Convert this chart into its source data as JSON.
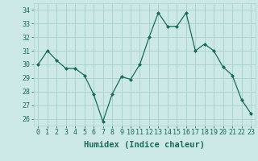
{
  "x": [
    0,
    1,
    2,
    3,
    4,
    5,
    6,
    7,
    8,
    9,
    10,
    11,
    12,
    13,
    14,
    15,
    16,
    17,
    18,
    19,
    20,
    21,
    22,
    23
  ],
  "y": [
    30.0,
    31.0,
    30.3,
    29.7,
    29.7,
    29.2,
    27.8,
    25.8,
    27.8,
    29.1,
    28.9,
    30.0,
    32.0,
    33.8,
    32.8,
    32.8,
    33.8,
    31.0,
    31.5,
    31.0,
    29.8,
    29.2,
    27.4,
    26.4
  ],
  "line_color": "#1a6b5a",
  "marker": "D",
  "marker_size": 2,
  "bg_color": "#cce9e7",
  "grid_color": "#aad4d1",
  "xlabel": "Humidex (Indice chaleur)",
  "xlim": [
    -0.5,
    23.5
  ],
  "ylim": [
    25.5,
    34.5
  ],
  "yticks": [
    26,
    27,
    28,
    29,
    30,
    31,
    32,
    33,
    34
  ],
  "xtick_labels": [
    "0",
    "1",
    "2",
    "3",
    "4",
    "5",
    "6",
    "7",
    "8",
    "9",
    "10",
    "11",
    "12",
    "13",
    "14",
    "15",
    "16",
    "17",
    "18",
    "19",
    "20",
    "21",
    "22",
    "23"
  ],
  "font_color": "#1a6b5a",
  "tick_fontsize": 6,
  "label_fontsize": 7.5
}
